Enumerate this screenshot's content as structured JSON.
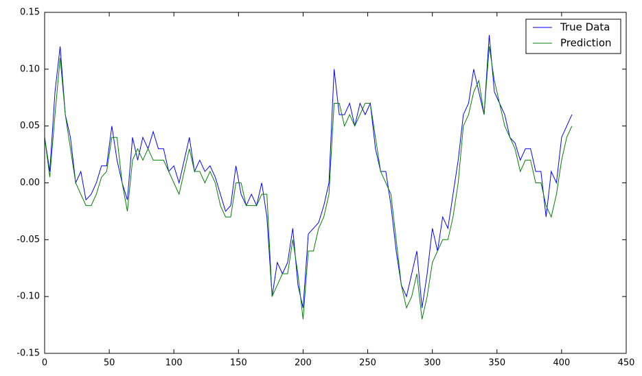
{
  "chart_data": {
    "type": "line",
    "x": [
      0,
      4,
      8,
      12,
      16,
      20,
      24,
      28,
      32,
      36,
      40,
      44,
      48,
      52,
      56,
      60,
      64,
      68,
      72,
      76,
      80,
      84,
      88,
      92,
      96,
      100,
      104,
      108,
      112,
      116,
      120,
      124,
      128,
      132,
      136,
      140,
      144,
      148,
      152,
      156,
      160,
      164,
      168,
      172,
      176,
      180,
      184,
      188,
      192,
      196,
      200,
      204,
      208,
      212,
      216,
      220,
      224,
      228,
      232,
      236,
      240,
      244,
      248,
      252,
      256,
      260,
      264,
      268,
      272,
      276,
      280,
      284,
      288,
      292,
      296,
      300,
      304,
      308,
      312,
      316,
      320,
      324,
      328,
      332,
      336,
      340,
      344,
      348,
      352,
      356,
      360,
      364,
      368,
      372,
      376,
      380,
      384,
      388,
      392,
      396,
      400,
      404,
      408
    ],
    "series": [
      {
        "name": "True Data",
        "color": "#0000ff",
        "values": [
          0.04,
          0.01,
          0.08,
          0.12,
          0.06,
          0.04,
          0.0,
          0.01,
          -0.015,
          -0.01,
          0.0,
          0.015,
          0.015,
          0.05,
          0.02,
          0.0,
          -0.015,
          0.04,
          0.02,
          0.04,
          0.03,
          0.045,
          0.03,
          0.03,
          0.01,
          0.015,
          0.0,
          0.02,
          0.04,
          0.01,
          0.02,
          0.01,
          0.015,
          0.005,
          -0.01,
          -0.025,
          -0.02,
          0.015,
          -0.01,
          -0.02,
          -0.01,
          -0.02,
          0.0,
          -0.03,
          -0.1,
          -0.07,
          -0.08,
          -0.07,
          -0.04,
          -0.09,
          -0.11,
          -0.045,
          -0.04,
          -0.035,
          -0.02,
          0.0,
          0.1,
          0.06,
          0.06,
          0.07,
          0.05,
          0.07,
          0.06,
          0.07,
          0.03,
          0.01,
          0.01,
          -0.02,
          -0.06,
          -0.09,
          -0.1,
          -0.08,
          -0.06,
          -0.11,
          -0.08,
          -0.04,
          -0.06,
          -0.03,
          -0.04,
          -0.01,
          0.02,
          0.06,
          0.07,
          0.1,
          0.08,
          0.06,
          0.13,
          0.08,
          0.07,
          0.06,
          0.04,
          0.035,
          0.02,
          0.03,
          0.03,
          0.01,
          0.01,
          -0.03,
          0.01,
          0.0,
          0.04,
          0.05,
          0.06
        ]
      },
      {
        "name": "Prediction",
        "color": "#008000",
        "values": [
          0.04,
          0.005,
          0.06,
          0.11,
          0.06,
          0.03,
          0.0,
          -0.01,
          -0.02,
          -0.02,
          -0.01,
          0.005,
          0.01,
          0.04,
          0.04,
          0.0,
          -0.025,
          0.02,
          0.03,
          0.02,
          0.03,
          0.02,
          0.02,
          0.02,
          0.01,
          0.0,
          -0.01,
          0.01,
          0.03,
          0.01,
          0.01,
          0.0,
          0.01,
          0.0,
          -0.02,
          -0.03,
          -0.03,
          0.0,
          0.0,
          -0.02,
          -0.02,
          -0.02,
          -0.01,
          -0.01,
          -0.1,
          -0.09,
          -0.08,
          -0.08,
          -0.05,
          -0.08,
          -0.12,
          -0.06,
          -0.06,
          -0.04,
          -0.03,
          -0.01,
          0.07,
          0.07,
          0.05,
          0.06,
          0.05,
          0.06,
          0.07,
          0.07,
          0.04,
          0.01,
          0.0,
          -0.01,
          -0.05,
          -0.09,
          -0.11,
          -0.1,
          -0.08,
          -0.12,
          -0.1,
          -0.07,
          -0.06,
          -0.05,
          -0.05,
          -0.03,
          0.0,
          0.05,
          0.06,
          0.08,
          0.09,
          0.06,
          0.12,
          0.09,
          0.07,
          0.05,
          0.04,
          0.03,
          0.01,
          0.02,
          0.02,
          0.0,
          0.0,
          -0.02,
          -0.03,
          -0.01,
          0.02,
          0.04,
          0.05
        ]
      }
    ],
    "xlim": [
      0,
      450
    ],
    "xticks": [
      0,
      50,
      100,
      150,
      200,
      250,
      300,
      350,
      400,
      450
    ],
    "ylim": [
      -0.15,
      0.15
    ],
    "yticks": [
      -0.15,
      {
        "value": -0.1,
        "label": "-0.10"
      },
      -0.05,
      {
        "value": 0,
        "label": "0.00"
      },
      0.05,
      {
        "value": 0.1,
        "label": "0.10"
      },
      0.15
    ],
    "legend": "upper right"
  }
}
